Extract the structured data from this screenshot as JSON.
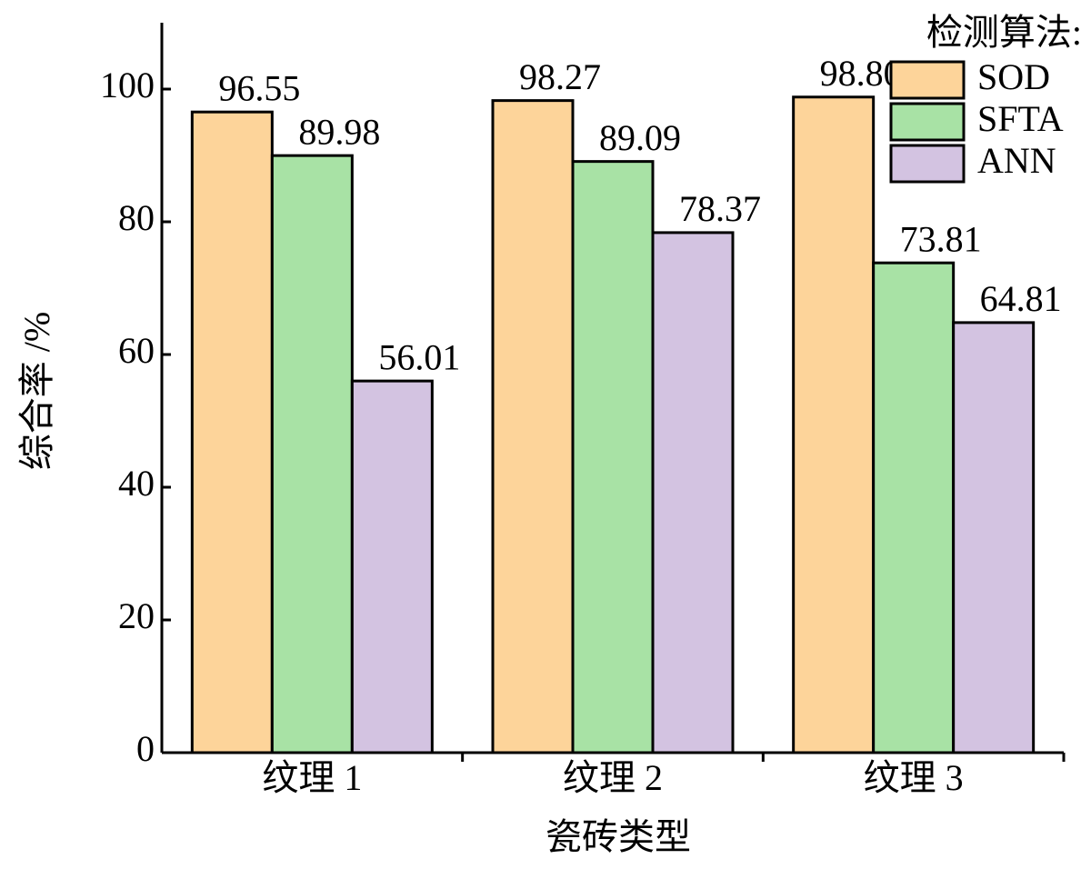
{
  "chart_data": {
    "type": "bar",
    "xlabel": "瓷砖类型",
    "ylabel": "综合率 /%",
    "categories": [
      "纹理 1",
      "纹理 2",
      "纹理 3"
    ],
    "series": [
      {
        "name": "SOD",
        "color": "#fdd49a",
        "values": [
          96.55,
          98.27,
          98.8
        ],
        "value_labels": [
          "96.55",
          "98.27",
          "98.80"
        ]
      },
      {
        "name": "SFTA",
        "color": "#a8e2a5",
        "values": [
          89.98,
          89.09,
          73.81
        ],
        "value_labels": [
          "89.98",
          "89.09",
          "73.81"
        ]
      },
      {
        "name": "ANN",
        "color": "#d3c3e1",
        "values": [
          56.01,
          78.37,
          64.81
        ],
        "value_labels": [
          "56.01",
          "78.37",
          "64.81"
        ]
      }
    ],
    "legend_title": "检测算法:",
    "legend": "upper right",
    "ylim": [
      0,
      110
    ],
    "yticks": [
      0,
      20,
      40,
      60,
      80,
      100
    ],
    "grid": false
  }
}
